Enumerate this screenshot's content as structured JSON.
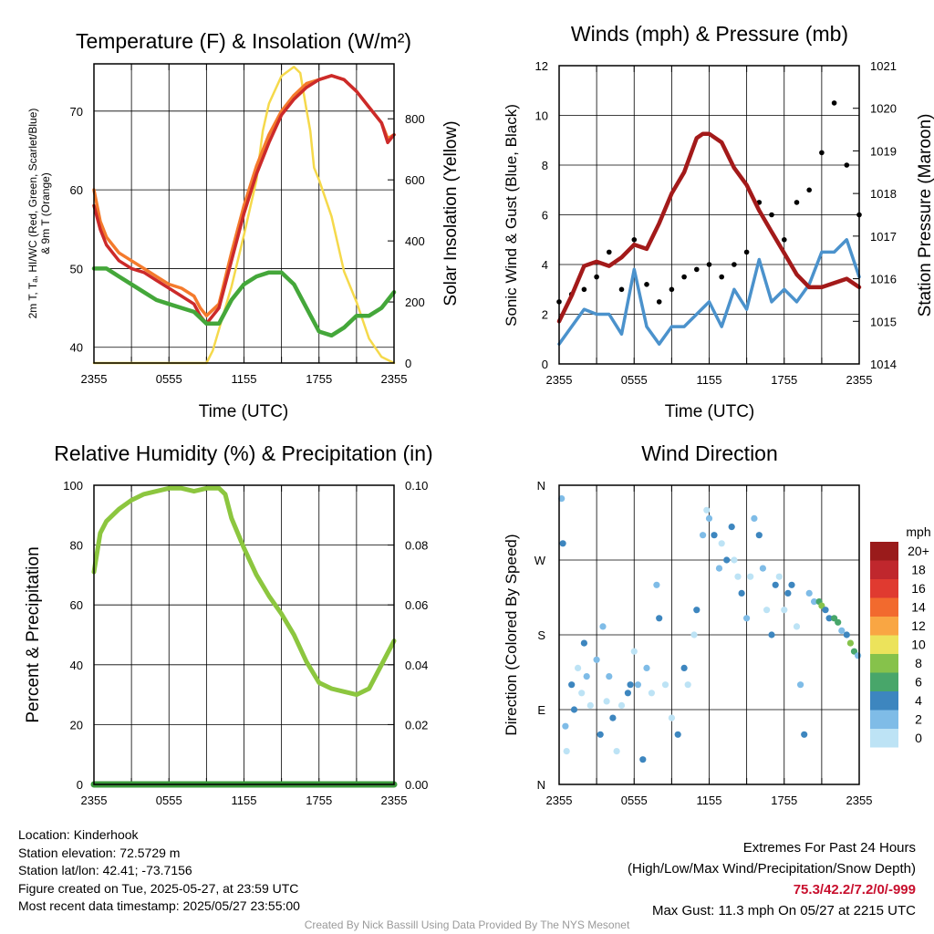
{
  "chart_data": [
    {
      "type": "line",
      "title": "Temperature (F) & Insolation (W/m²)",
      "xlabel": "Time (UTC)",
      "ylabel_left_lines": [
        "2m T, Tₐ, HI/WC (Red, Green, Scarlet/Blue)",
        "& 9m T (Orange)"
      ],
      "ylabel_right": "Solar Insolation (Yellow)",
      "x_ticks": [
        "2355",
        "0555",
        "1155",
        "1755",
        "2355"
      ],
      "x_range_hours": [
        0,
        24
      ],
      "ylim_left": [
        38,
        76
      ],
      "yticks_left": [
        40,
        50,
        60,
        70
      ],
      "ylim_right": [
        0,
        980
      ],
      "yticks_right": [
        0,
        200,
        400,
        600,
        800
      ],
      "grid": true,
      "series": [
        {
          "color": "#f47a2c",
          "axis": "left",
          "x": [
            0,
            0.5,
            1,
            2,
            3,
            4,
            5,
            6,
            7,
            8,
            8.5,
            9,
            10,
            11,
            12,
            13,
            14,
            15,
            16,
            17,
            18,
            19,
            20,
            21,
            22,
            23,
            23.5,
            24
          ],
          "y": [
            60,
            56,
            54,
            52,
            51,
            50,
            49,
            48,
            47.5,
            46.5,
            45,
            44,
            45.5,
            52,
            58,
            63,
            67,
            70,
            72,
            73.5,
            74,
            74.5,
            74,
            72.5,
            70.5,
            68.5,
            66.5,
            67
          ]
        },
        {
          "color": "#cc2a2a",
          "axis": "left",
          "x": [
            0,
            0.5,
            1,
            2,
            3,
            4,
            5,
            6,
            7,
            8,
            8.5,
            9,
            10,
            11,
            12,
            13,
            14,
            15,
            16,
            17,
            18,
            19,
            20,
            21,
            22,
            23,
            23.5,
            24
          ],
          "y": [
            58,
            55,
            53,
            51,
            50,
            49.5,
            48.5,
            47.5,
            46.5,
            45.5,
            44,
            43,
            45,
            51,
            57,
            62,
            66,
            69.5,
            71.5,
            73,
            74,
            74.5,
            74,
            72.5,
            70.5,
            68.5,
            66,
            67
          ]
        },
        {
          "color": "#44a73a",
          "axis": "left",
          "x": [
            0,
            1,
            2,
            3,
            4,
            5,
            6,
            7,
            8,
            9,
            10,
            11,
            12,
            13,
            14,
            15,
            16,
            17,
            18,
            19,
            20,
            21,
            22,
            23,
            24
          ],
          "y": [
            50,
            50,
            49,
            48,
            47,
            46,
            45.5,
            45,
            44.5,
            43,
            43,
            46,
            48,
            49,
            49.5,
            49.5,
            48,
            45,
            42,
            41.5,
            42.5,
            44,
            44,
            45,
            47
          ]
        },
        {
          "color": "#f5d94b",
          "axis": "right",
          "x": [
            0,
            8.2,
            9,
            9.5,
            10,
            11,
            12,
            13,
            13.5,
            14,
            15,
            16,
            16.5,
            17,
            17.3,
            17.6,
            18,
            19,
            20,
            21,
            22,
            23,
            24
          ],
          "y": [
            0,
            0,
            0,
            40,
            110,
            250,
            420,
            600,
            760,
            850,
            940,
            970,
            950,
            830,
            760,
            640,
            600,
            480,
            300,
            200,
            80,
            20,
            0
          ]
        }
      ]
    },
    {
      "type": "line",
      "title": "Winds (mph) & Pressure (mb)",
      "xlabel": "Time (UTC)",
      "ylabel_left": "Sonic Wind & Gust (Blue, Black)",
      "ylabel_right": "Station Pressure (Maroon)",
      "x_ticks": [
        "2355",
        "0555",
        "1155",
        "1755",
        "2355"
      ],
      "x_range_hours": [
        0,
        24
      ],
      "ylim_left": [
        0,
        12
      ],
      "yticks_left": [
        0,
        2,
        4,
        6,
        8,
        10,
        12
      ],
      "ylim_right": [
        1014,
        1021
      ],
      "yticks_right": [
        1014,
        1015,
        1016,
        1017,
        1018,
        1019,
        1020,
        1021
      ],
      "grid": true,
      "series": [
        {
          "color": "#4b92cc",
          "axis": "left",
          "x": [
            0,
            1,
            2,
            3,
            4,
            5,
            6,
            7,
            8,
            9,
            10,
            11,
            12,
            13,
            14,
            15,
            16,
            17,
            18,
            19,
            20,
            21,
            22,
            23,
            24
          ],
          "y": [
            0.8,
            1.5,
            2.2,
            2,
            2,
            1.2,
            3.8,
            1.5,
            0.8,
            1.5,
            1.5,
            2,
            2.5,
            1.5,
            3,
            2.2,
            4.2,
            2.5,
            3,
            2.5,
            3.2,
            4.5,
            4.5,
            5,
            3.5
          ]
        },
        {
          "color": "#000000",
          "axis": "left",
          "x": [
            0,
            1,
            2,
            3,
            4,
            5,
            6,
            7,
            8,
            9,
            10,
            11,
            12,
            13,
            14,
            15,
            16,
            17,
            18,
            19,
            20,
            21,
            22,
            23,
            24
          ],
          "y": [
            2.5,
            2.8,
            3,
            3.5,
            4.5,
            3,
            5,
            3.2,
            2.5,
            3,
            3.5,
            3.8,
            4,
            3.5,
            4,
            4.5,
            6.5,
            6,
            5,
            6.5,
            7,
            8.5,
            10.5,
            8,
            6
          ]
        },
        {
          "color": "#a31a1a",
          "axis": "right",
          "x": [
            0,
            1,
            2,
            3,
            4,
            5,
            6,
            7,
            8,
            9,
            10,
            11,
            11.5,
            12,
            13,
            14,
            15,
            16,
            17,
            18,
            19,
            20,
            21,
            22,
            23,
            24
          ],
          "y": [
            1015,
            1015.6,
            1016.3,
            1016.4,
            1016.3,
            1016.5,
            1016.8,
            1016.7,
            1017.3,
            1018,
            1018.5,
            1019.3,
            1019.4,
            1019.4,
            1019.2,
            1018.6,
            1018.2,
            1017.6,
            1017.1,
            1016.6,
            1016.1,
            1015.8,
            1015.8,
            1015.9,
            1016,
            1015.8
          ]
        }
      ]
    },
    {
      "type": "line",
      "title": "Relative Humidity (%) & Precipitation (in)",
      "ylabel_left": "Percent & Precipitation",
      "x_ticks": [
        "2355",
        "0555",
        "1155",
        "1755",
        "2355"
      ],
      "x_range_hours": [
        0,
        24
      ],
      "ylim_left": [
        0,
        100
      ],
      "yticks_left": [
        0,
        20,
        40,
        60,
        80,
        100
      ],
      "ylim_right": [
        0,
        0.1
      ],
      "yticks_right": [
        "0.00",
        "0.02",
        "0.04",
        "0.06",
        "0.08",
        "0.10"
      ],
      "grid": true,
      "series": [
        {
          "color": "#8cc63f",
          "axis": "left",
          "x": [
            0,
            0.5,
            1,
            2,
            3,
            4,
            5,
            6,
            7,
            8,
            9,
            10,
            10.5,
            11,
            12,
            13,
            14,
            15,
            16,
            17,
            18,
            19,
            20,
            21,
            22,
            23,
            24
          ],
          "y": [
            71,
            84,
            88,
            92,
            95,
            97,
            98,
            99,
            99,
            98,
            99,
            99,
            97,
            89,
            79,
            70,
            63,
            57,
            50,
            41,
            34,
            32,
            31,
            30,
            32,
            40,
            48
          ]
        },
        {
          "color": "#3b9a3b",
          "axis": "left",
          "x": [
            0,
            24
          ],
          "y": [
            0,
            0
          ]
        }
      ]
    },
    {
      "type": "scatter",
      "title": "Wind Direction",
      "ylabel": "Direction (Colored By Speed)",
      "x_ticks": [
        "2355",
        "0555",
        "1155",
        "1755",
        "2355"
      ],
      "x_range_hours": [
        0,
        24
      ],
      "y_ticks": [
        "N",
        "E",
        "S",
        "W",
        "N"
      ],
      "ylim_degrees": [
        0,
        360
      ],
      "legend_title": "mph",
      "legend_labels": [
        "20+",
        "18",
        "16",
        "14",
        "12",
        "10",
        "8",
        "6",
        "4",
        "2",
        "0"
      ],
      "legend_colors": [
        "#9a1b1b",
        "#c0272d",
        "#e03a30",
        "#f26a2e",
        "#f9a643",
        "#ece35b",
        "#86c24b",
        "#48a66a",
        "#3d86bf",
        "#7fbce7",
        "#bde3f5"
      ],
      "points": [
        [
          0.2,
          344
        ],
        [
          0.3,
          290
        ],
        [
          0.5,
          70
        ],
        [
          0.6,
          40
        ],
        [
          1,
          120
        ],
        [
          1.2,
          90
        ],
        [
          1.5,
          140
        ],
        [
          1.8,
          110
        ],
        [
          2,
          170
        ],
        [
          2.2,
          130
        ],
        [
          2.5,
          95
        ],
        [
          3,
          150
        ],
        [
          3.3,
          60
        ],
        [
          3.5,
          190
        ],
        [
          3.8,
          100
        ],
        [
          4,
          130
        ],
        [
          4.3,
          80
        ],
        [
          4.6,
          40
        ],
        [
          5,
          95
        ],
        [
          5.5,
          110
        ],
        [
          5.7,
          120
        ],
        [
          6,
          160
        ],
        [
          6.3,
          120
        ],
        [
          6.7,
          30
        ],
        [
          7,
          140
        ],
        [
          7.4,
          110
        ],
        [
          7.8,
          240
        ],
        [
          8,
          200
        ],
        [
          8.5,
          120
        ],
        [
          9,
          80
        ],
        [
          9.5,
          60
        ],
        [
          10,
          140
        ],
        [
          10.3,
          120
        ],
        [
          10.8,
          180
        ],
        [
          11,
          210
        ],
        [
          11.5,
          300
        ],
        [
          11.8,
          330
        ],
        [
          12,
          320
        ],
        [
          12.4,
          300
        ],
        [
          12.8,
          260
        ],
        [
          13,
          290
        ],
        [
          13.4,
          270
        ],
        [
          13.8,
          310
        ],
        [
          14,
          270
        ],
        [
          14.3,
          250
        ],
        [
          14.6,
          230
        ],
        [
          15,
          200
        ],
        [
          15.3,
          250
        ],
        [
          15.6,
          320
        ],
        [
          16,
          300
        ],
        [
          16.3,
          260
        ],
        [
          16.6,
          210
        ],
        [
          17,
          180
        ],
        [
          17.3,
          240
        ],
        [
          17.6,
          250
        ],
        [
          18,
          210
        ],
        [
          18.3,
          230
        ],
        [
          18.6,
          240
        ],
        [
          19,
          190
        ],
        [
          19.3,
          120
        ],
        [
          19.6,
          60
        ],
        [
          20,
          230
        ],
        [
          20.4,
          220
        ],
        [
          20.8,
          220
        ],
        [
          21,
          215
        ],
        [
          21.3,
          210
        ],
        [
          21.6,
          200
        ],
        [
          22,
          200
        ],
        [
          22.3,
          195
        ],
        [
          22.6,
          185
        ],
        [
          23,
          180
        ],
        [
          23.3,
          170
        ],
        [
          23.6,
          160
        ],
        [
          23.9,
          155
        ]
      ]
    }
  ],
  "footer": {
    "location": "Location: Kinderhook",
    "elevation": "Station elevation: 72.5729 m",
    "latlon": "Station lat/lon: 42.41; -73.7156",
    "created": "Figure created on Tue, 2025-05-27, at 23:59 UTC",
    "recent": "Most recent data timestamp: 2025/05/27 23:55:00",
    "extremes_title": "Extremes For Past 24 Hours",
    "extremes_legend": "(High/Low/Max Wind/Precipitation/Snow Depth)",
    "extremes_values": "75.3/42.2/7.2/0/-999",
    "max_gust": "Max Gust: 11.3 mph On 05/27 at 2215 UTC",
    "credit": "Created By Nick Bassill Using Data Provided By The NYS Mesonet"
  }
}
